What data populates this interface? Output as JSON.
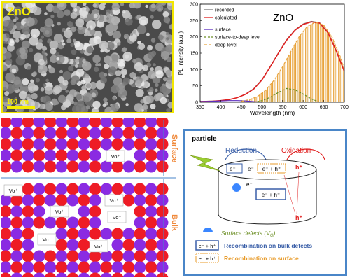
{
  "sem": {
    "label": "ZnO",
    "scale": "100 nm"
  },
  "chart_data": {
    "type": "line",
    "annotation": "ZnO",
    "xlabel": "Wavelength (nm)",
    "ylabel": "PL Intensity (a.u.)",
    "xlim": [
      350,
      700
    ],
    "ylim": [
      0,
      300
    ],
    "xticks": [
      350,
      400,
      450,
      500,
      550,
      600,
      650,
      700
    ],
    "yticks": [
      0,
      50,
      100,
      150,
      200,
      250,
      300
    ],
    "legend": [
      "recorded",
      "calculated",
      "surface",
      "surface-to-deep level",
      "deep level"
    ],
    "legend_position": "top-left",
    "series": [
      {
        "name": "recorded",
        "x": [
          350,
          380,
          400,
          420,
          440,
          460,
          480,
          500,
          520,
          540,
          560,
          580,
          600,
          620,
          640,
          660,
          680,
          700
        ],
        "values": [
          3,
          4,
          5,
          8,
          14,
          25,
          42,
          70,
          110,
          152,
          192,
          222,
          240,
          248,
          244,
          215,
          160,
          95
        ]
      },
      {
        "name": "calculated",
        "x": [
          350,
          380,
          400,
          420,
          440,
          460,
          480,
          500,
          520,
          540,
          560,
          580,
          600,
          620,
          640,
          660,
          680,
          700
        ],
        "values": [
          2,
          3,
          5,
          8,
          14,
          24,
          40,
          68,
          108,
          150,
          190,
          220,
          238,
          246,
          242,
          213,
          158,
          94
        ]
      },
      {
        "name": "surface",
        "x": [
          350,
          380,
          400,
          420,
          440,
          460,
          480,
          500
        ],
        "values": [
          2,
          3,
          4,
          5,
          5,
          4,
          2,
          0
        ]
      },
      {
        "name": "surface-to-deep level",
        "x": [
          480,
          500,
          520,
          540,
          560,
          580,
          600,
          620,
          640
        ],
        "values": [
          0,
          5,
          15,
          30,
          42,
          38,
          25,
          10,
          0
        ]
      },
      {
        "name": "deep level",
        "x": [
          450,
          470,
          490,
          510,
          530,
          550,
          570,
          590,
          610,
          630,
          650,
          670,
          690,
          700
        ],
        "values": [
          3,
          8,
          18,
          38,
          68,
          108,
          155,
          200,
          232,
          245,
          236,
          200,
          140,
          100
        ]
      }
    ],
    "colors": {
      "recorded": "#7a7a7a",
      "calculated": "#e02020",
      "surface": "#5b2dbd",
      "surface-to-deep level": "#6b8e23",
      "deep level": "#e8a33c"
    }
  },
  "lattice": {
    "label_surface": "Surface",
    "label_bulk": "Bulk",
    "vacancy": "Vo⁺",
    "colors": {
      "red": "#ee1c25",
      "purple": "#8a2be2",
      "label": "#f08a3c"
    }
  },
  "particle": {
    "title": "particle",
    "reduction": "Reduction",
    "oxidation": "Oxidation",
    "e_minus": "e⁻",
    "h_plus": "h⁺",
    "pair": "e⁻ + h⁺",
    "e_trap": "e⁻",
    "legend": [
      {
        "text": "Surface defects (V",
        "sub": "O",
        "tail": ")",
        "color": "#6b8e23"
      },
      {
        "text": "Recombination on bulk defects",
        "color": "#3a5fa8"
      },
      {
        "text": "Recombination on surface",
        "color": "#e89b2a"
      }
    ],
    "colors": {
      "border": "#4a86c8",
      "reduction": "#3a5fa8",
      "oxidation": "#e02020"
    }
  }
}
